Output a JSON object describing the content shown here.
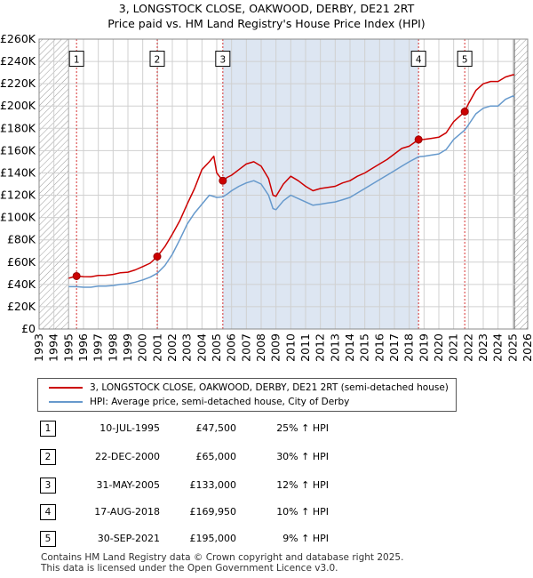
{
  "title_line1": "3, LONGSTOCK CLOSE, OAKWOOD, DERBY, DE21 2RT",
  "title_line2": "Price paid vs. HM Land Registry's House Price Index (HPI)",
  "colors": {
    "property": "#cc0000",
    "hpi": "#6699cc",
    "shade": "#dde6f2",
    "sale_vline": "#cc0000"
  },
  "chart_data": {
    "type": "line",
    "xlim": [
      1993,
      2026
    ],
    "ylim": [
      0,
      260000
    ],
    "x_ticks": [
      "1993",
      "1994",
      "1995",
      "1996",
      "1997",
      "1998",
      "1999",
      "2000",
      "2001",
      "2002",
      "2003",
      "2004",
      "2005",
      "2006",
      "2007",
      "2008",
      "2009",
      "2010",
      "2011",
      "2012",
      "2013",
      "2014",
      "2015",
      "2016",
      "2017",
      "2018",
      "2019",
      "2020",
      "2021",
      "2022",
      "2023",
      "2024",
      "2025",
      "2026"
    ],
    "y_ticks": [
      {
        "value": 0,
        "label": "£0"
      },
      {
        "value": 20000,
        "label": "£20K"
      },
      {
        "value": 40000,
        "label": "£40K"
      },
      {
        "value": 60000,
        "label": "£60K"
      },
      {
        "value": 80000,
        "label": "£80K"
      },
      {
        "value": 100000,
        "label": "£100K"
      },
      {
        "value": 120000,
        "label": "£120K"
      },
      {
        "value": 140000,
        "label": "£140K"
      },
      {
        "value": 160000,
        "label": "£160K"
      },
      {
        "value": 180000,
        "label": "£180K"
      },
      {
        "value": 200000,
        "label": "£200K"
      },
      {
        "value": 220000,
        "label": "£220K"
      },
      {
        "value": 240000,
        "label": "£240K"
      },
      {
        "value": 260000,
        "label": "£260K"
      }
    ],
    "data_start": 1995.0,
    "data_end": 2025.1,
    "series": [
      {
        "name": "3, LONGSTOCK CLOSE, OAKWOOD, DERBY, DE21 2RT (semi-detached house)",
        "color": "#cc0000",
        "points": [
          [
            1995.0,
            45500
          ],
          [
            1995.53,
            47500
          ],
          [
            1996.0,
            47000
          ],
          [
            1996.5,
            46800
          ],
          [
            1997.0,
            48000
          ],
          [
            1997.5,
            48200
          ],
          [
            1998.0,
            49000
          ],
          [
            1998.5,
            50500
          ],
          [
            1999.0,
            51000
          ],
          [
            1999.5,
            53000
          ],
          [
            2000.0,
            56000
          ],
          [
            2000.5,
            59000
          ],
          [
            2000.98,
            65000
          ],
          [
            2001.5,
            74000
          ],
          [
            2002.0,
            85000
          ],
          [
            2002.5,
            97000
          ],
          [
            2003.0,
            112000
          ],
          [
            2003.5,
            126000
          ],
          [
            2004.0,
            143000
          ],
          [
            2004.5,
            150000
          ],
          [
            2004.8,
            155000
          ],
          [
            2005.0,
            140000
          ],
          [
            2005.41,
            133000
          ],
          [
            2005.7,
            136000
          ],
          [
            2006.0,
            138000
          ],
          [
            2006.5,
            143000
          ],
          [
            2007.0,
            148000
          ],
          [
            2007.5,
            150000
          ],
          [
            2008.0,
            146000
          ],
          [
            2008.5,
            135000
          ],
          [
            2008.8,
            120000
          ],
          [
            2009.0,
            119000
          ],
          [
            2009.5,
            130000
          ],
          [
            2010.0,
            137000
          ],
          [
            2010.5,
            133000
          ],
          [
            2011.0,
            128000
          ],
          [
            2011.5,
            124000
          ],
          [
            2012.0,
            126000
          ],
          [
            2012.5,
            127000
          ],
          [
            2013.0,
            128000
          ],
          [
            2013.5,
            131000
          ],
          [
            2014.0,
            133000
          ],
          [
            2014.5,
            137000
          ],
          [
            2015.0,
            140000
          ],
          [
            2015.5,
            144000
          ],
          [
            2016.0,
            148000
          ],
          [
            2016.5,
            152000
          ],
          [
            2017.0,
            157000
          ],
          [
            2017.5,
            162000
          ],
          [
            2018.0,
            164000
          ],
          [
            2018.63,
            169950
          ],
          [
            2019.0,
            170000
          ],
          [
            2019.5,
            171000
          ],
          [
            2020.0,
            172000
          ],
          [
            2020.5,
            176000
          ],
          [
            2021.0,
            186000
          ],
          [
            2021.75,
            195000
          ],
          [
            2022.0,
            202000
          ],
          [
            2022.5,
            214000
          ],
          [
            2023.0,
            220000
          ],
          [
            2023.5,
            222000
          ],
          [
            2024.0,
            222000
          ],
          [
            2024.5,
            226000
          ],
          [
            2025.0,
            228000
          ],
          [
            2025.1,
            228000
          ]
        ]
      },
      {
        "name": "HPI: Average price, semi-detached house, City of Derby",
        "color": "#6699cc",
        "points": [
          [
            1995.0,
            38000
          ],
          [
            1995.53,
            38000
          ],
          [
            1996.0,
            37500
          ],
          [
            1996.5,
            37500
          ],
          [
            1997.0,
            38500
          ],
          [
            1997.5,
            38500
          ],
          [
            1998.0,
            39000
          ],
          [
            1998.5,
            40000
          ],
          [
            1999.0,
            40500
          ],
          [
            1999.5,
            42000
          ],
          [
            2000.0,
            44000
          ],
          [
            2000.5,
            46500
          ],
          [
            2000.98,
            50000
          ],
          [
            2001.5,
            57000
          ],
          [
            2002.0,
            67000
          ],
          [
            2002.5,
            80000
          ],
          [
            2003.0,
            94000
          ],
          [
            2003.5,
            104000
          ],
          [
            2004.0,
            112000
          ],
          [
            2004.5,
            120000
          ],
          [
            2005.0,
            118000
          ],
          [
            2005.41,
            118500
          ],
          [
            2005.7,
            121000
          ],
          [
            2006.0,
            124000
          ],
          [
            2006.5,
            128000
          ],
          [
            2007.0,
            131000
          ],
          [
            2007.5,
            133000
          ],
          [
            2008.0,
            130000
          ],
          [
            2008.5,
            120000
          ],
          [
            2008.8,
            108000
          ],
          [
            2009.0,
            107000
          ],
          [
            2009.5,
            115000
          ],
          [
            2010.0,
            120000
          ],
          [
            2010.5,
            117000
          ],
          [
            2011.0,
            114000
          ],
          [
            2011.5,
            111000
          ],
          [
            2012.0,
            112000
          ],
          [
            2012.5,
            113000
          ],
          [
            2013.0,
            114000
          ],
          [
            2013.5,
            116000
          ],
          [
            2014.0,
            118000
          ],
          [
            2014.5,
            122000
          ],
          [
            2015.0,
            126000
          ],
          [
            2015.5,
            130000
          ],
          [
            2016.0,
            134000
          ],
          [
            2016.5,
            138000
          ],
          [
            2017.0,
            142000
          ],
          [
            2017.5,
            146000
          ],
          [
            2018.0,
            150000
          ],
          [
            2018.63,
            154500
          ],
          [
            2019.0,
            155000
          ],
          [
            2019.5,
            156000
          ],
          [
            2020.0,
            157000
          ],
          [
            2020.5,
            161000
          ],
          [
            2021.0,
            170000
          ],
          [
            2021.75,
            178500
          ],
          [
            2022.0,
            183000
          ],
          [
            2022.5,
            193000
          ],
          [
            2023.0,
            198000
          ],
          [
            2023.5,
            200000
          ],
          [
            2024.0,
            200000
          ],
          [
            2024.5,
            206000
          ],
          [
            2025.0,
            209000
          ],
          [
            2025.1,
            208000
          ]
        ]
      }
    ],
    "sales": [
      {
        "id": "1",
        "x": 1995.53,
        "price": 47500
      },
      {
        "id": "2",
        "x": 2000.98,
        "price": 65000
      },
      {
        "id": "3",
        "x": 2005.41,
        "price": 133000
      },
      {
        "id": "4",
        "x": 2018.63,
        "price": 169950
      },
      {
        "id": "5",
        "x": 2021.75,
        "price": 195000
      }
    ],
    "sale_box_value": 242000
  },
  "legend": {
    "property_label": "3, LONGSTOCK CLOSE, OAKWOOD, DERBY, DE21 2RT (semi-detached house)",
    "hpi_label": "HPI: Average price, semi-detached house, City of Derby"
  },
  "sales_table": [
    {
      "num": "1",
      "date": "10-JUL-1995",
      "price": "£47,500",
      "hpi": "25% ↑ HPI"
    },
    {
      "num": "2",
      "date": "22-DEC-2000",
      "price": "£65,000",
      "hpi": "30% ↑ HPI"
    },
    {
      "num": "3",
      "date": "31-MAY-2005",
      "price": "£133,000",
      "hpi": "12% ↑ HPI"
    },
    {
      "num": "4",
      "date": "17-AUG-2018",
      "price": "£169,950",
      "hpi": "10% ↑ HPI"
    },
    {
      "num": "5",
      "date": "30-SEP-2021",
      "price": "£195,000",
      "hpi": "9% ↑ HPI"
    }
  ],
  "footer": {
    "line1": "Contains HM Land Registry data © Crown copyright and database right 2025.",
    "line2": "This data is licensed under the Open Government Licence v3.0."
  }
}
